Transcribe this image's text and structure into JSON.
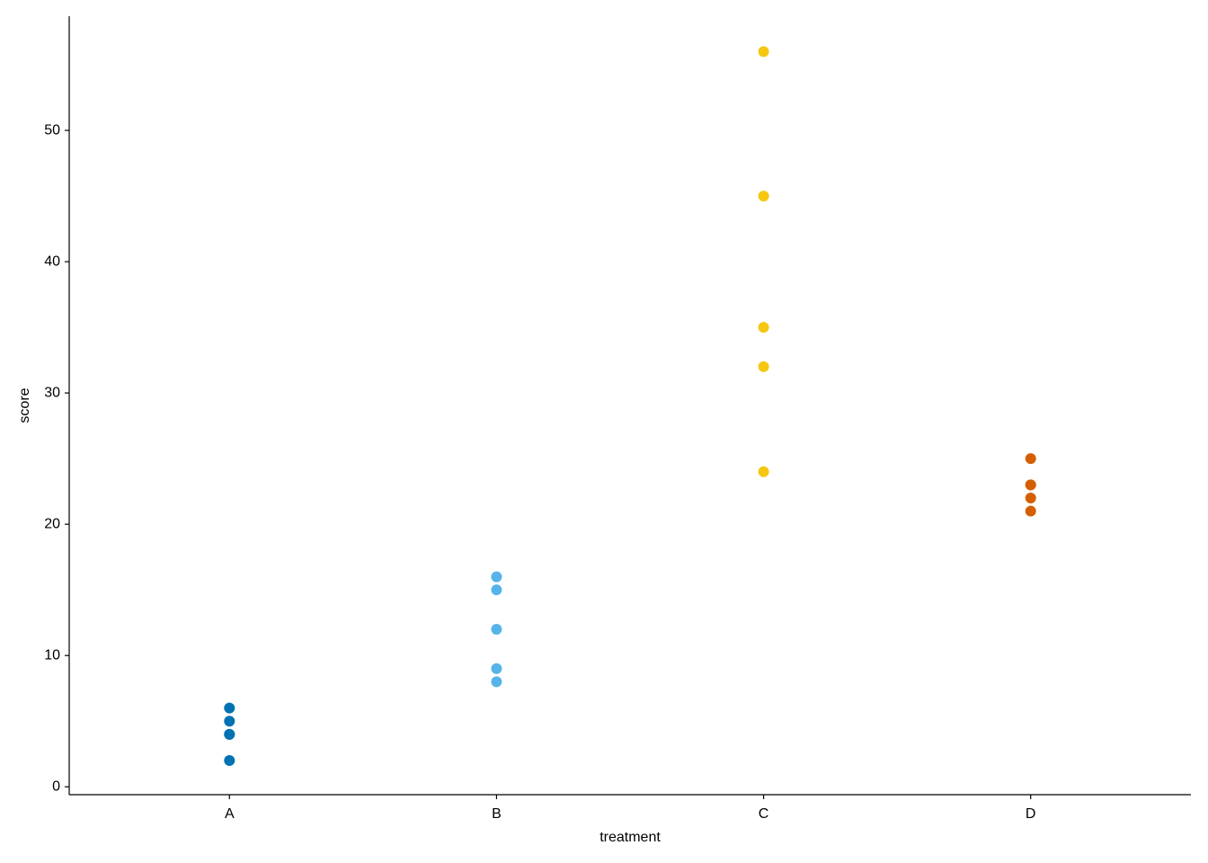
{
  "chart_data": {
    "type": "strip",
    "x_label": "treatment",
    "y_label": "score",
    "categories": [
      "A",
      "B",
      "C",
      "D"
    ],
    "values": [
      [
        6,
        5,
        4,
        4,
        2
      ],
      [
        16,
        15,
        12,
        9,
        8
      ],
      [
        56,
        45,
        35,
        32,
        24
      ],
      [
        25,
        23,
        23,
        22,
        21
      ]
    ],
    "colors": [
      "#0072B2",
      "#56B4E9",
      "#F5C710",
      "#D55E00"
    ],
    "ylim": [
      -0.6,
      58.7
    ],
    "yticks": [
      0,
      10,
      20,
      30,
      40,
      50
    ],
    "grid": false
  }
}
